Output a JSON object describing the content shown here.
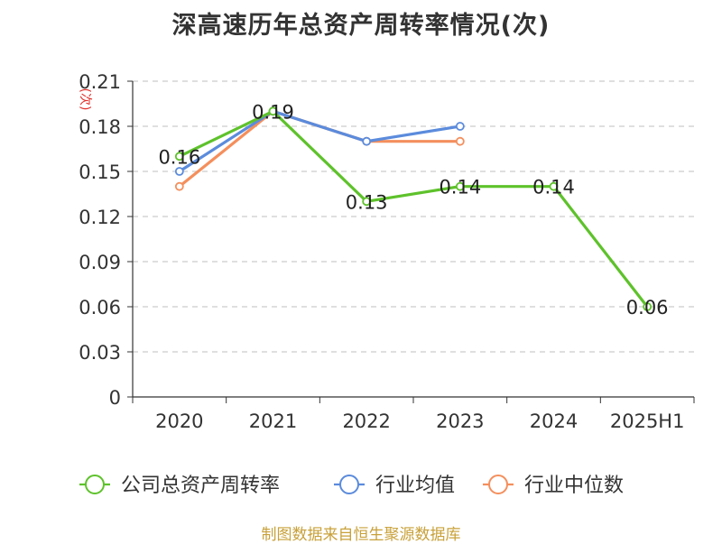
{
  "chart_data": {
    "type": "line",
    "title": "深高速历年总资产周转率情况(次)",
    "ylabel": "(次)",
    "xlabel": "",
    "categories": [
      "2020",
      "2021",
      "2022",
      "2023",
      "2024",
      "2025H1"
    ],
    "ylim": [
      0,
      0.21
    ],
    "yticks": [
      "0",
      "0.03",
      "0.06",
      "0.09",
      "0.12",
      "0.15",
      "0.18",
      "0.21"
    ],
    "grid": true,
    "legend_position": "bottom",
    "series": [
      {
        "name": "公司总资产周转率",
        "color": "#5ec22b",
        "values": [
          0.16,
          0.19,
          0.13,
          0.14,
          0.14,
          0.06
        ],
        "labels": [
          "0.16",
          "0.19",
          "0.13",
          "0.14",
          "0.14",
          "0.06"
        ]
      },
      {
        "name": "行业均值",
        "color": "#5b8bdc",
        "values": [
          0.15,
          0.19,
          0.17,
          0.18,
          null,
          null
        ],
        "labels": []
      },
      {
        "name": "行业中位数",
        "color": "#f48f5d",
        "values": [
          0.14,
          0.19,
          0.17,
          0.17,
          null,
          null
        ],
        "labels": []
      }
    ],
    "source": "制图数据来自恒生聚源数据库"
  }
}
